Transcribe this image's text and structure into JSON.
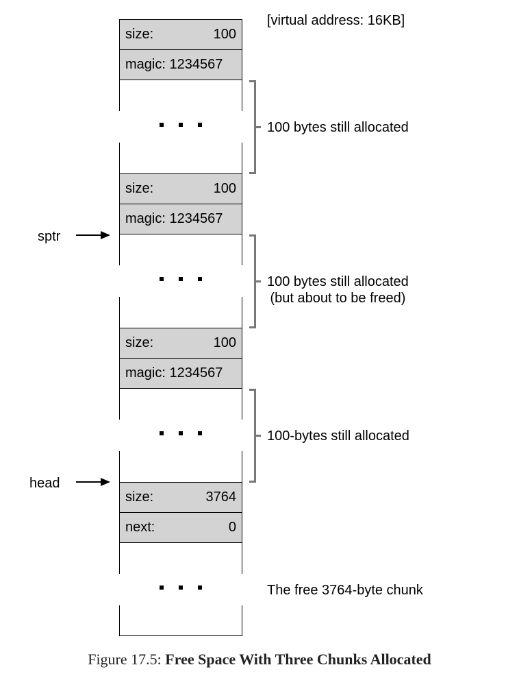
{
  "top_annotation": "[virtual address: 16KB]",
  "chunks": [
    {
      "size_label": "size:",
      "size_value": "100",
      "magic_label": "magic: 1234567",
      "annotation": "100 bytes still allocated"
    },
    {
      "size_label": "size:",
      "size_value": "100",
      "magic_label": "magic: 1234567",
      "annotation_line1": "100 bytes still allocated",
      "annotation_line2": "(but about to be freed)"
    },
    {
      "size_label": "size:",
      "size_value": "100",
      "magic_label": "magic: 1234567",
      "annotation": "100-bytes still allocated"
    }
  ],
  "free_chunk": {
    "size_label": "size:",
    "size_value": "3764",
    "next_label": "next:",
    "next_value": "0",
    "annotation": "The free 3764-byte chunk"
  },
  "pointers": {
    "sptr": "sptr",
    "head": "head"
  },
  "caption": {
    "prefix": "Figure 17.5: ",
    "title": "Free Space With Three Chunks Allocated"
  }
}
